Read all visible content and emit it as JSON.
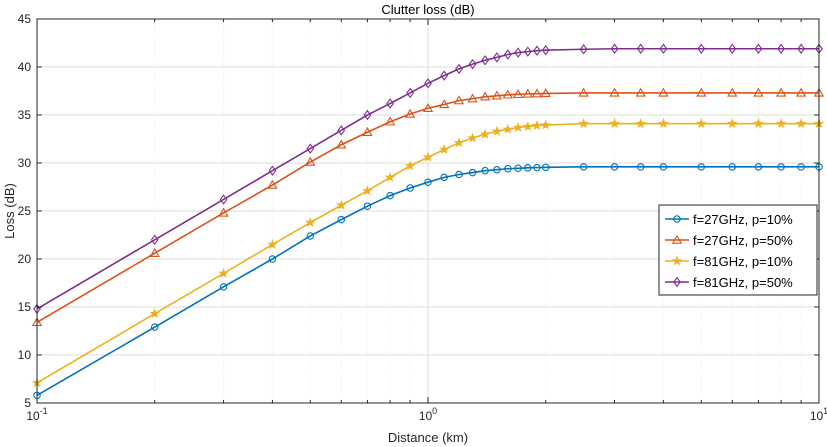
{
  "chart_data": {
    "type": "line",
    "title": "Clutter loss (dB)",
    "xlabel": "Distance (km)",
    "ylabel": "Loss (dB)",
    "xscale": "log",
    "xlim": [
      0.1,
      10
    ],
    "ylim": [
      5,
      45
    ],
    "yticks": [
      5,
      10,
      15,
      20,
      25,
      30,
      35,
      40,
      45
    ],
    "xticks": [
      {
        "value": 0.1,
        "base": "10",
        "exp": "-1"
      },
      {
        "value": 1,
        "base": "10",
        "exp": "0"
      },
      {
        "value": 10,
        "base": "10",
        "exp": "1"
      }
    ],
    "grid": true,
    "legend_position": "right",
    "x": [
      0.1,
      0.2,
      0.3,
      0.4,
      0.5,
      0.6,
      0.7,
      0.8,
      0.9,
      1.0,
      1.1,
      1.2,
      1.3,
      1.4,
      1.5,
      1.6,
      1.7,
      1.8,
      1.9,
      2.0,
      2.5,
      3.0,
      3.5,
      4.0,
      5.0,
      6.0,
      7.0,
      8.0,
      9.0,
      10.0
    ],
    "series": [
      {
        "name": "f=27GHz, p=10%",
        "color": "#0072BD",
        "marker": "circle",
        "values": [
          5.8,
          12.9,
          17.1,
          20.0,
          22.4,
          24.1,
          25.5,
          26.6,
          27.4,
          28.0,
          28.5,
          28.8,
          29.0,
          29.2,
          29.3,
          29.4,
          29.45,
          29.5,
          29.52,
          29.55,
          29.6,
          29.6,
          29.6,
          29.6,
          29.6,
          29.6,
          29.6,
          29.6,
          29.6,
          29.6
        ]
      },
      {
        "name": "f=27GHz, p=50%",
        "color": "#D95319",
        "marker": "triangle",
        "values": [
          13.4,
          20.6,
          24.8,
          27.7,
          30.1,
          31.9,
          33.2,
          34.3,
          35.1,
          35.7,
          36.1,
          36.5,
          36.7,
          36.9,
          37.0,
          37.1,
          37.15,
          37.2,
          37.22,
          37.25,
          37.3,
          37.3,
          37.3,
          37.3,
          37.3,
          37.3,
          37.3,
          37.3,
          37.3,
          37.3
        ]
      },
      {
        "name": "f=81GHz, p=10%",
        "color": "#EDB120",
        "marker": "star",
        "values": [
          7.1,
          14.3,
          18.5,
          21.5,
          23.8,
          25.6,
          27.1,
          28.5,
          29.7,
          30.6,
          31.4,
          32.1,
          32.6,
          33.0,
          33.3,
          33.5,
          33.7,
          33.8,
          33.9,
          33.95,
          34.1,
          34.1,
          34.1,
          34.1,
          34.1,
          34.1,
          34.1,
          34.1,
          34.1,
          34.1
        ]
      },
      {
        "name": "f=81GHz, p=50%",
        "color": "#7E2F8E",
        "marker": "diamond",
        "values": [
          14.8,
          22.0,
          26.2,
          29.2,
          31.5,
          33.4,
          35.0,
          36.2,
          37.3,
          38.3,
          39.1,
          39.8,
          40.3,
          40.7,
          41.0,
          41.3,
          41.5,
          41.6,
          41.7,
          41.75,
          41.85,
          41.9,
          41.9,
          41.9,
          41.9,
          41.9,
          41.9,
          41.9,
          41.9,
          41.9
        ]
      }
    ]
  }
}
